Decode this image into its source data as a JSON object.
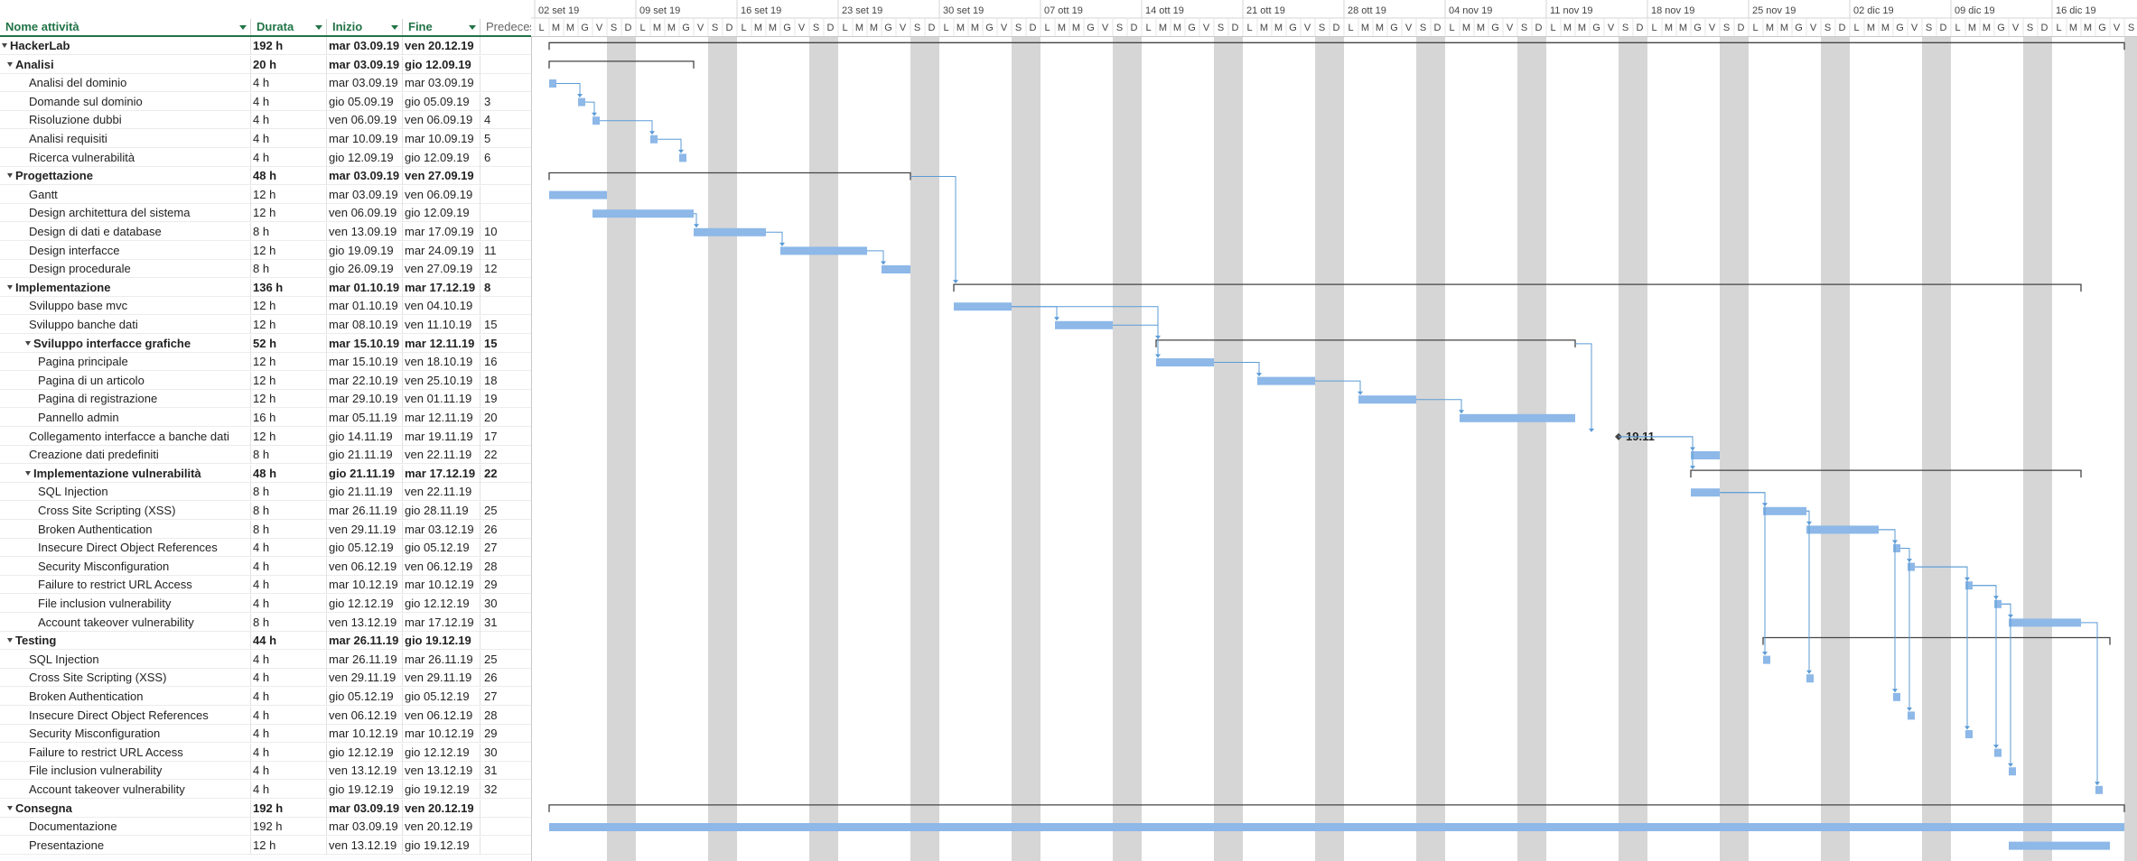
{
  "columns": {
    "name": "Nome attività",
    "duration": "Durata",
    "start": "Inizio",
    "finish": "Fine",
    "predecessors": "Predeces"
  },
  "timeline": {
    "weeks": [
      "02 set 19",
      "09 set 19",
      "16 set 19",
      "23 set 19",
      "30 set 19",
      "07 ott 19",
      "14 ott 19",
      "21 ott 19",
      "28 ott 19",
      "04 nov 19",
      "11 nov 19",
      "18 nov 19",
      "25 nov 19",
      "02 dic 19",
      "09 dic 19",
      "16 dic 19"
    ],
    "day_letters": [
      "L",
      "M",
      "M",
      "G",
      "V",
      "S",
      "D"
    ],
    "milestone_label": "19.11"
  },
  "tasks": [
    {
      "name": "HackerLab",
      "duration": "192 h",
      "start": "mar 03.09.19",
      "finish": "ven 20.12.19",
      "pred": "",
      "level": 0,
      "summary": true
    },
    {
      "name": "Analisi",
      "duration": "20 h",
      "start": "mar 03.09.19",
      "finish": "gio 12.09.19",
      "pred": "",
      "level": 1,
      "summary": true
    },
    {
      "name": "Analisi del dominio",
      "duration": "4 h",
      "start": "mar 03.09.19",
      "finish": "mar 03.09.19",
      "pred": "",
      "level": 2,
      "summary": false
    },
    {
      "name": "Domande sul dominio",
      "duration": "4 h",
      "start": "gio 05.09.19",
      "finish": "gio 05.09.19",
      "pred": "3",
      "level": 2,
      "summary": false
    },
    {
      "name": "Risoluzione dubbi",
      "duration": "4 h",
      "start": "ven 06.09.19",
      "finish": "ven 06.09.19",
      "pred": "4",
      "level": 2,
      "summary": false
    },
    {
      "name": "Analisi requisiti",
      "duration": "4 h",
      "start": "mar 10.09.19",
      "finish": "mar 10.09.19",
      "pred": "5",
      "level": 2,
      "summary": false
    },
    {
      "name": "Ricerca vulnerabilità",
      "duration": "4 h",
      "start": "gio 12.09.19",
      "finish": "gio 12.09.19",
      "pred": "6",
      "level": 2,
      "summary": false
    },
    {
      "name": "Progettazione",
      "duration": "48 h",
      "start": "mar 03.09.19",
      "finish": "ven 27.09.19",
      "pred": "",
      "level": 1,
      "summary": true
    },
    {
      "name": "Gantt",
      "duration": "12 h",
      "start": "mar 03.09.19",
      "finish": "ven 06.09.19",
      "pred": "",
      "level": 2,
      "summary": false
    },
    {
      "name": "Design architettura del sistema",
      "duration": "12 h",
      "start": "ven 06.09.19",
      "finish": "gio 12.09.19",
      "pred": "",
      "level": 2,
      "summary": false
    },
    {
      "name": "Design di dati e database",
      "duration": "8 h",
      "start": "ven 13.09.19",
      "finish": "mar 17.09.19",
      "pred": "10",
      "level": 2,
      "summary": false
    },
    {
      "name": "Design interfacce",
      "duration": "12 h",
      "start": "gio 19.09.19",
      "finish": "mar 24.09.19",
      "pred": "11",
      "level": 2,
      "summary": false
    },
    {
      "name": "Design procedurale",
      "duration": "8 h",
      "start": "gio 26.09.19",
      "finish": "ven 27.09.19",
      "pred": "12",
      "level": 2,
      "summary": false
    },
    {
      "name": "Implementazione",
      "duration": "136 h",
      "start": "mar 01.10.19",
      "finish": "mar 17.12.19",
      "pred": "8",
      "level": 1,
      "summary": true
    },
    {
      "name": "Sviluppo base mvc",
      "duration": "12 h",
      "start": "mar 01.10.19",
      "finish": "ven 04.10.19",
      "pred": "",
      "level": 2,
      "summary": false
    },
    {
      "name": "Sviluppo banche dati",
      "duration": "12 h",
      "start": "mar 08.10.19",
      "finish": "ven 11.10.19",
      "pred": "15",
      "level": 2,
      "summary": false
    },
    {
      "name": "Sviluppo interfacce grafiche",
      "duration": "52 h",
      "start": "mar 15.10.19",
      "finish": "mar 12.11.19",
      "pred": "15",
      "level": 2,
      "summary": true
    },
    {
      "name": "Pagina principale",
      "duration": "12 h",
      "start": "mar 15.10.19",
      "finish": "ven 18.10.19",
      "pred": "16",
      "level": 3,
      "summary": false
    },
    {
      "name": "Pagina di un articolo",
      "duration": "12 h",
      "start": "mar 22.10.19",
      "finish": "ven 25.10.19",
      "pred": "18",
      "level": 3,
      "summary": false
    },
    {
      "name": "Pagina di registrazione",
      "duration": "12 h",
      "start": "mar 29.10.19",
      "finish": "ven 01.11.19",
      "pred": "19",
      "level": 3,
      "summary": false
    },
    {
      "name": "Pannello admin",
      "duration": "16 h",
      "start": "mar 05.11.19",
      "finish": "mar 12.11.19",
      "pred": "20",
      "level": 3,
      "summary": false
    },
    {
      "name": "Collegamento interfacce a banche dati",
      "duration": "12 h",
      "start": "gio 14.11.19",
      "finish": "mar 19.11.19",
      "pred": "17",
      "level": 2,
      "summary": false
    },
    {
      "name": "Creazione dati predefiniti",
      "duration": "8 h",
      "start": "gio 21.11.19",
      "finish": "ven 22.11.19",
      "pred": "22",
      "level": 2,
      "summary": false
    },
    {
      "name": "Implementazione vulnerabilità",
      "duration": "48 h",
      "start": "gio 21.11.19",
      "finish": "mar 17.12.19",
      "pred": "22",
      "level": 2,
      "summary": true
    },
    {
      "name": "SQL Injection",
      "duration": "8 h",
      "start": "gio 21.11.19",
      "finish": "ven 22.11.19",
      "pred": "",
      "level": 3,
      "summary": false
    },
    {
      "name": "Cross Site Scripting (XSS)",
      "duration": "8 h",
      "start": "mar 26.11.19",
      "finish": "gio 28.11.19",
      "pred": "25",
      "level": 3,
      "summary": false
    },
    {
      "name": "Broken Authentication",
      "duration": "8 h",
      "start": "ven 29.11.19",
      "finish": "mar 03.12.19",
      "pred": "26",
      "level": 3,
      "summary": false
    },
    {
      "name": "Insecure Direct Object References",
      "duration": "4 h",
      "start": "gio 05.12.19",
      "finish": "gio 05.12.19",
      "pred": "27",
      "level": 3,
      "summary": false
    },
    {
      "name": "Security Misconfiguration",
      "duration": "4 h",
      "start": "ven 06.12.19",
      "finish": "ven 06.12.19",
      "pred": "28",
      "level": 3,
      "summary": false
    },
    {
      "name": "Failure to restrict URL Access",
      "duration": "4 h",
      "start": "mar 10.12.19",
      "finish": "mar 10.12.19",
      "pred": "29",
      "level": 3,
      "summary": false
    },
    {
      "name": "File inclusion vulnerability",
      "duration": "4 h",
      "start": "gio 12.12.19",
      "finish": "gio 12.12.19",
      "pred": "30",
      "level": 3,
      "summary": false
    },
    {
      "name": "Account takeover vulnerability",
      "duration": "8 h",
      "start": "ven 13.12.19",
      "finish": "mar 17.12.19",
      "pred": "31",
      "level": 3,
      "summary": false
    },
    {
      "name": "Testing",
      "duration": "44 h",
      "start": "mar 26.11.19",
      "finish": "gio 19.12.19",
      "pred": "",
      "level": 1,
      "summary": true
    },
    {
      "name": "SQL Injection",
      "duration": "4 h",
      "start": "mar 26.11.19",
      "finish": "mar 26.11.19",
      "pred": "25",
      "level": 2,
      "summary": false
    },
    {
      "name": "Cross Site Scripting (XSS)",
      "duration": "4 h",
      "start": "ven 29.11.19",
      "finish": "ven 29.11.19",
      "pred": "26",
      "level": 2,
      "summary": false
    },
    {
      "name": "Broken Authentication",
      "duration": "4 h",
      "start": "gio 05.12.19",
      "finish": "gio 05.12.19",
      "pred": "27",
      "level": 2,
      "summary": false
    },
    {
      "name": "Insecure Direct Object References",
      "duration": "4 h",
      "start": "ven 06.12.19",
      "finish": "ven 06.12.19",
      "pred": "28",
      "level": 2,
      "summary": false
    },
    {
      "name": "Security Misconfiguration",
      "duration": "4 h",
      "start": "mar 10.12.19",
      "finish": "mar 10.12.19",
      "pred": "29",
      "level": 2,
      "summary": false
    },
    {
      "name": "Failure to restrict URL Access",
      "duration": "4 h",
      "start": "gio 12.12.19",
      "finish": "gio 12.12.19",
      "pred": "30",
      "level": 2,
      "summary": false
    },
    {
      "name": "File inclusion vulnerability",
      "duration": "4 h",
      "start": "ven 13.12.19",
      "finish": "ven 13.12.19",
      "pred": "31",
      "level": 2,
      "summary": false
    },
    {
      "name": "Account takeover vulnerability",
      "duration": "4 h",
      "start": "gio 19.12.19",
      "finish": "gio 19.12.19",
      "pred": "32",
      "level": 2,
      "summary": false
    },
    {
      "name": "Consegna",
      "duration": "192 h",
      "start": "mar 03.09.19",
      "finish": "ven 20.12.19",
      "pred": "",
      "level": 1,
      "summary": true
    },
    {
      "name": "Documentazione",
      "duration": "192 h",
      "start": "mar 03.09.19",
      "finish": "ven 20.12.19",
      "pred": "",
      "level": 2,
      "summary": false
    },
    {
      "name": "Presentazione",
      "duration": "12 h",
      "start": "ven 13.12.19",
      "finish": "gio 19.12.19",
      "pred": "",
      "level": 2,
      "summary": false
    }
  ],
  "colors": {
    "header_text": "#217346",
    "task_bar": "#8db8e8",
    "summary_bar": "#444444",
    "link": "#5b9bd5",
    "nonworking": "#d6d6d6"
  }
}
